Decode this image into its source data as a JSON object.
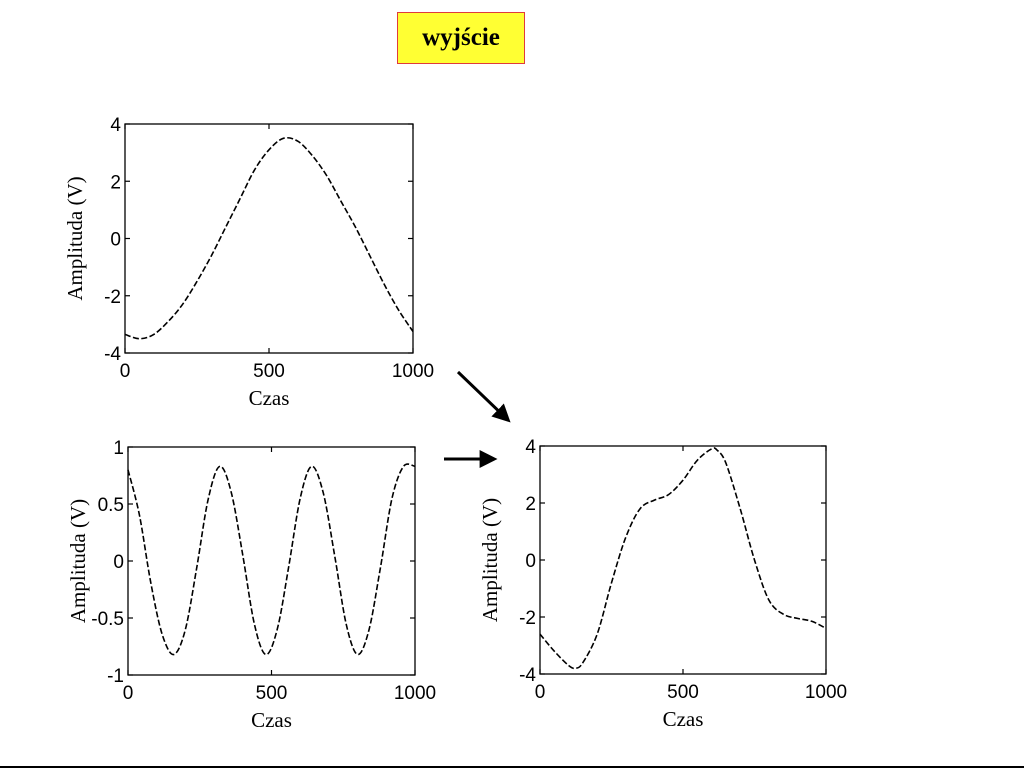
{
  "header": {
    "title": "wyjście"
  },
  "chart_data": [
    {
      "type": "line",
      "title": "",
      "xlabel": "Czas",
      "ylabel": "Amplituda (V)",
      "xlim": [
        0,
        1000
      ],
      "ylim": [
        -4,
        4
      ],
      "xticks": [
        "0",
        "500",
        "1000"
      ],
      "yticks": [
        "4",
        "2",
        "0",
        "-2",
        "-4"
      ],
      "series": [
        {
          "x": [
            0,
            50,
            100,
            150,
            200,
            250,
            300,
            350,
            400,
            450,
            500,
            550,
            600,
            650,
            700,
            750,
            800,
            850,
            900,
            950,
            1000
          ],
          "y": [
            -3.35,
            -3.5,
            -3.35,
            -2.9,
            -2.3,
            -1.5,
            -0.6,
            0.4,
            1.4,
            2.4,
            3.1,
            3.5,
            3.4,
            2.9,
            2.2,
            1.3,
            0.4,
            -0.6,
            -1.6,
            -2.5,
            -3.25
          ]
        }
      ]
    },
    {
      "type": "line",
      "title": "",
      "xlabel": "Czas",
      "ylabel": "Amplituda (V)",
      "xlim": [
        0,
        1000
      ],
      "ylim": [
        -1,
        1
      ],
      "xticks": [
        "0",
        "500",
        "1000"
      ],
      "yticks": [
        "1",
        "0.5",
        "0",
        "-0.5",
        "-1"
      ],
      "series": [
        {
          "x": [
            0,
            40,
            80,
            120,
            160,
            200,
            240,
            280,
            320,
            360,
            400,
            440,
            480,
            520,
            560,
            600,
            640,
            680,
            720,
            760,
            800,
            840,
            880,
            920,
            960,
            1000
          ],
          "y": [
            0.8,
            0.4,
            -0.2,
            -0.65,
            -0.82,
            -0.6,
            -0.05,
            0.55,
            0.83,
            0.6,
            0.05,
            -0.55,
            -0.82,
            -0.6,
            -0.05,
            0.55,
            0.83,
            0.6,
            0.05,
            -0.55,
            -0.82,
            -0.6,
            -0.05,
            0.55,
            0.83,
            0.83
          ]
        }
      ]
    },
    {
      "type": "line",
      "title": "",
      "xlabel": "Czas",
      "ylabel": "Amplituda (V)",
      "xlim": [
        0,
        1000
      ],
      "ylim": [
        -4,
        4
      ],
      "xticks": [
        "0",
        "500",
        "1000"
      ],
      "yticks": [
        "4",
        "2",
        "0",
        "-2",
        "-4"
      ],
      "series": [
        {
          "x": [
            0,
            50,
            100,
            125,
            150,
            200,
            250,
            300,
            350,
            400,
            450,
            500,
            550,
            600,
            620,
            650,
            700,
            750,
            800,
            850,
            900,
            950,
            1000
          ],
          "y": [
            -2.6,
            -3.2,
            -3.7,
            -3.8,
            -3.6,
            -2.6,
            -0.8,
            0.8,
            1.8,
            2.1,
            2.3,
            2.8,
            3.5,
            3.9,
            3.85,
            3.4,
            1.8,
            0.0,
            -1.4,
            -1.9,
            -2.05,
            -2.15,
            -2.4
          ]
        }
      ]
    }
  ]
}
